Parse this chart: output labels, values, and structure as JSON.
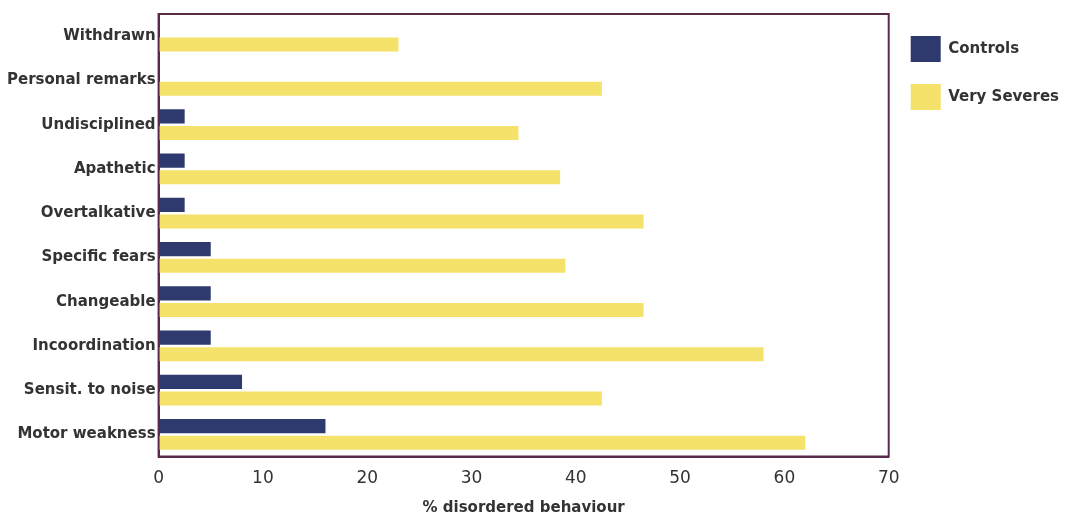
{
  "chart_data": {
    "type": "bar",
    "orientation": "horizontal",
    "xlabel": "% disordered behaviour",
    "categories": [
      "Withdrawn",
      "Personal remarks",
      "Undisciplined",
      "Apathetic",
      "Overtalkative",
      "Specific fears",
      "Changeable",
      "Incoordination",
      "Sensit. to noise",
      "Motor weakness"
    ],
    "series": [
      {
        "name": "Controls",
        "color": "#2e3a6e",
        "values": [
          0,
          0,
          2.5,
          2.5,
          2.5,
          5,
          5,
          5,
          8,
          16
        ]
      },
      {
        "name": "Very Severes",
        "color": "#f5e26a",
        "values": [
          23,
          42.5,
          34.5,
          38.5,
          46.5,
          39,
          46.5,
          58,
          42.5,
          62
        ]
      }
    ],
    "xlim": [
      0,
      70
    ],
    "xticks": [
      0,
      10,
      20,
      30,
      40,
      50,
      60,
      70
    ],
    "grid": false,
    "legend": "right"
  }
}
